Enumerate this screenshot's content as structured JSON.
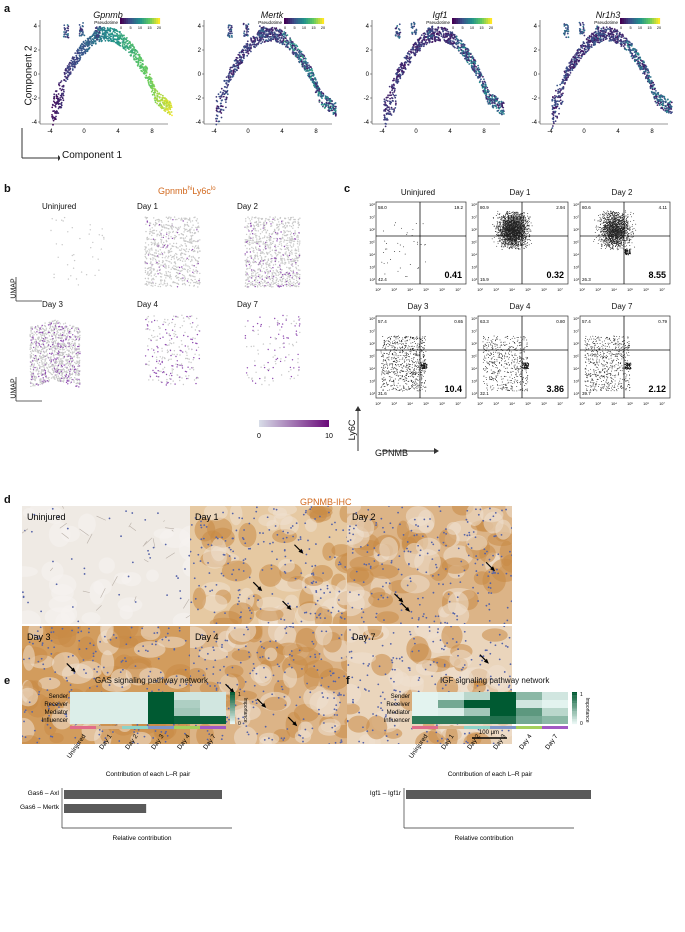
{
  "panels": {
    "a": {
      "label": "a",
      "genes": [
        "Gpnmb",
        "Mertk",
        "Igf1",
        "Nr1h3"
      ],
      "legend_title": "Pseudotime",
      "legend_ticks_gpnmb": [
        "0",
        "5",
        "10",
        "15",
        "20"
      ],
      "legend_ticks_mertk": [
        "0",
        "5",
        "10",
        "15",
        "20"
      ],
      "legend_ticks_igf1": [
        "0",
        "5",
        "10",
        "15",
        "20"
      ],
      "legend_ticks_nr1h3": [
        "0",
        "5",
        "10",
        "15",
        "20"
      ],
      "x_ticks": [
        "-4",
        "0",
        "4",
        "8"
      ],
      "y_ticks": [
        "4",
        "2",
        "0",
        "-2",
        "-4"
      ],
      "xlabel": "Component 1",
      "ylabel": "Component 2"
    },
    "b": {
      "label": "b",
      "title_main": "Gpnmb",
      "title_sup1": "hi",
      "title_mid": "Ly6c",
      "title_sup2": "lo",
      "conditions": [
        "Uninjured",
        "Day 1",
        "Day 2",
        "Day 3",
        "Day 4",
        "Day 7"
      ],
      "axis_label": "UMAP",
      "colorbar_min": "0",
      "colorbar_max": "10"
    },
    "c": {
      "label": "c",
      "conditions": [
        "Uninjured",
        "Day 1",
        "Day 2",
        "Day 3",
        "Day 4",
        "Day 7"
      ],
      "quadrant_tl": [
        "58.0",
        "80.9",
        "80.6",
        "57.4",
        "63.3",
        "57.4"
      ],
      "quadrant_tr": [
        "19.2",
        "2.94",
        "4.11",
        "0.65",
        "0.80",
        "0.79"
      ],
      "quadrant_bl": [
        "42.4",
        "15.9",
        "26.3",
        "31.6",
        "32.1",
        "39.7"
      ],
      "quadrant_br": [
        "0.41",
        "0.32",
        "8.55",
        "10.4",
        "3.86",
        "2.12"
      ],
      "ylabel": "Ly6C",
      "xlabel": "GPNMB",
      "y_ticks": [
        "10⁸",
        "10⁷",
        "10⁶",
        "10⁵",
        "10⁴",
        "10³",
        "10²"
      ],
      "x_ticks": [
        "10²",
        "10³",
        "10⁴",
        "10⁵",
        "10⁶",
        "10⁷"
      ]
    },
    "d": {
      "label": "d",
      "title": "GPNMB-IHC",
      "conditions": [
        "Uninjured",
        "Day 1",
        "Day 2",
        "Day 3",
        "Day 4",
        "Day 7"
      ],
      "scalebar": "100 μm"
    },
    "e": {
      "label": "e",
      "title": "GAS signaling pathway network",
      "rows": [
        "Sender",
        "Receiver",
        "Mediator",
        "Influencer"
      ],
      "columns": [
        "Uninjured",
        "Day 1",
        "Day 2",
        "Day 3",
        "Day 4",
        "Day 7"
      ],
      "importance_label": "Importance",
      "scale_max": "1",
      "scale_min": "0",
      "contribution_title": "Contribution of each L–R pair",
      "pairs": [
        "Gas6 – Axl",
        "Gas6 – Mertk"
      ],
      "relative_label": "Relative contribution"
    },
    "f": {
      "label": "f",
      "title": "IGF signaling pathway network",
      "rows": [
        "Sender",
        "Receiver",
        "Mediator",
        "Influencer"
      ],
      "columns": [
        "Uninjured",
        "Day 1",
        "Day 2",
        "Day 3",
        "Day 4",
        "Day 7"
      ],
      "importance_label": "Importance",
      "scale_max": "1",
      "scale_min": "0",
      "contribution_title": "Contribution of each L–R pair",
      "pairs": [
        "Igf1 – Igf1r"
      ],
      "relative_label": "Relative contribution"
    }
  },
  "chart_data": [
    {
      "type": "heatmap",
      "panel": "e",
      "rows": [
        "Sender",
        "Receiver",
        "Mediator",
        "Influencer"
      ],
      "columns": [
        "Uninjured",
        "Day 1",
        "Day 2",
        "Day 3",
        "Day 4",
        "Day 7"
      ],
      "values": [
        [
          0.05,
          0.05,
          0.05,
          1.0,
          0.1,
          0.1
        ],
        [
          0.05,
          0.05,
          0.05,
          1.0,
          0.25,
          0.1
        ],
        [
          0.05,
          0.05,
          0.05,
          1.0,
          0.3,
          0.1
        ],
        [
          0.05,
          0.05,
          0.05,
          1.0,
          0.95,
          0.95
        ]
      ]
    },
    {
      "type": "bar",
      "panel": "e",
      "categories": [
        "Gas6 – Axl",
        "Gas6 – Mertk"
      ],
      "values": [
        1.0,
        0.52
      ]
    },
    {
      "type": "heatmap",
      "panel": "f",
      "rows": [
        "Sender",
        "Receiver",
        "Mediator",
        "Influencer"
      ],
      "columns": [
        "Uninjured",
        "Day 1",
        "Day 2",
        "Day 3",
        "Day 4",
        "Day 7"
      ],
      "values": [
        [
          0.02,
          0.05,
          0.2,
          1.0,
          0.4,
          0.1
        ],
        [
          0.02,
          0.5,
          1.0,
          1.0,
          0.1,
          0.02
        ],
        [
          0.02,
          0.05,
          0.3,
          1.0,
          0.6,
          0.2
        ],
        [
          0.8,
          0.8,
          0.8,
          0.85,
          0.5,
          0.4
        ]
      ]
    },
    {
      "type": "bar",
      "panel": "f",
      "categories": [
        "Igf1 – Igf1r"
      ],
      "values": [
        1.0
      ]
    }
  ],
  "colors": {
    "accent_orange": "#d2691e",
    "heat_high": "#005a32",
    "heat_low": "#e8f6f3",
    "bar": "#5a5a5a"
  }
}
